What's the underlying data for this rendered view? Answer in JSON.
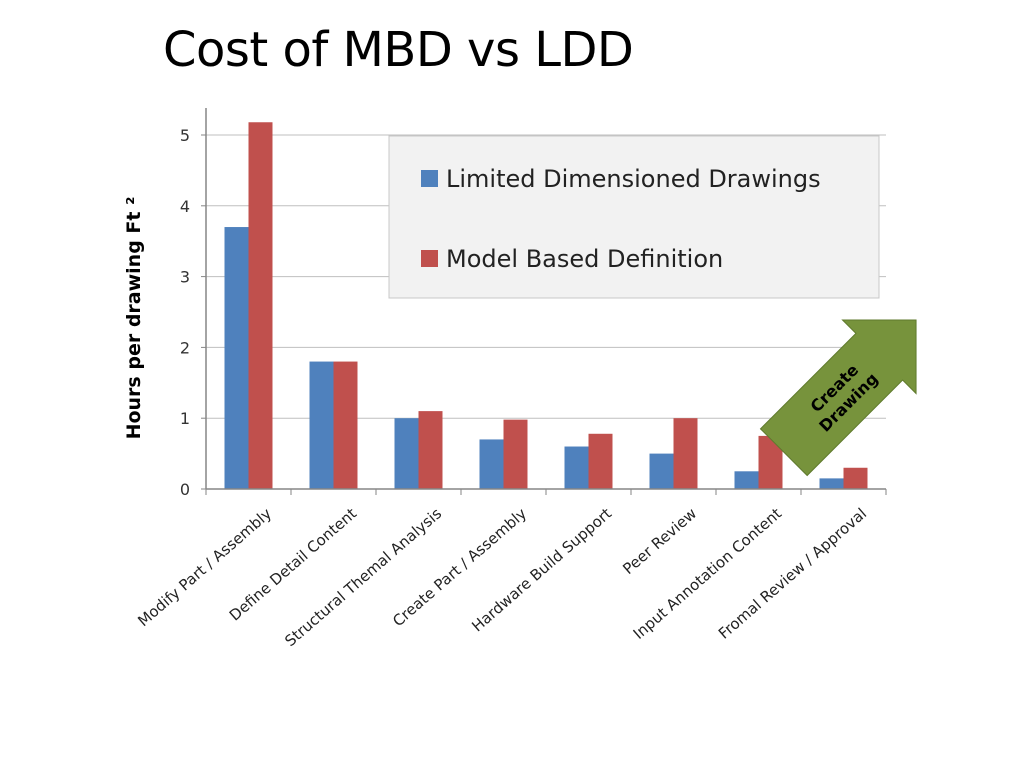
{
  "slide": {
    "title": "Cost of MBD vs LDD"
  },
  "colors": {
    "ldd": "#4F81BD",
    "mbd": "#C0504D",
    "callout": "#77933C",
    "grid": "#bfbfbf",
    "axis": "#868686"
  },
  "chart_data": {
    "type": "bar",
    "title": "",
    "xlabel": "",
    "ylabel": "Hours per drawing Ft ²",
    "ylim": [
      0,
      5.3
    ],
    "yticks": [
      "0",
      "1",
      "2",
      "3",
      "4",
      "5"
    ],
    "grid": true,
    "legend_position": "top-right",
    "categories": [
      "Modify Part / Assembly",
      "Define Detail Content",
      "Structural Themal Analysis",
      "Create Part / Assembly",
      "Hardware Build Support",
      "Peer Review",
      "Input Annotation Content",
      "Fromal Review / Approval"
    ],
    "series": [
      {
        "name": "Limited Dimensioned Drawings",
        "values": [
          3.7,
          1.8,
          1.0,
          0.7,
          0.6,
          0.5,
          0.25,
          0.15
        ]
      },
      {
        "name": "Model Based Definition",
        "values": [
          5.18,
          1.8,
          1.1,
          0.98,
          0.78,
          1.0,
          0.75,
          0.3
        ]
      }
    ],
    "annotation": "Create Drawing"
  }
}
